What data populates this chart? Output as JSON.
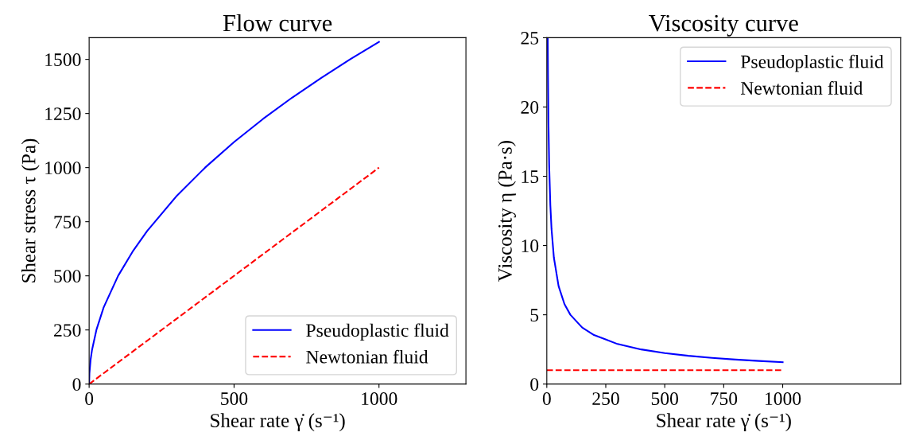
{
  "chart_data": [
    {
      "type": "line",
      "title": "Flow curve",
      "xlabel": "Shear rate γ̇ (s⁻¹)",
      "ylabel": "Shear stress τ (Pa)",
      "xlim": [
        0,
        1300
      ],
      "xticks": [
        0,
        500,
        1000
      ],
      "ylim": [
        0,
        1600
      ],
      "yticks": [
        0,
        250,
        500,
        750,
        1000,
        1250,
        1500
      ],
      "legend": "lower right",
      "grid": false,
      "series": [
        {
          "name": "Pseudoplastic fluid",
          "color": "#0000ff",
          "line_style": "solid",
          "x": [
            0,
            1,
            5,
            10,
            25,
            50,
            100,
            150,
            200,
            300,
            400,
            500,
            600,
            700,
            800,
            900,
            1000
          ],
          "values": [
            0,
            50,
            112,
            158,
            250,
            354,
            500,
            612,
            707,
            866,
            1000,
            1118,
            1225,
            1323,
            1414,
            1500,
            1581
          ]
        },
        {
          "name": "Newtonian fluid",
          "color": "#ff0000",
          "line_style": "dashed",
          "x": [
            0,
            1000
          ],
          "values": [
            0,
            1000
          ]
        }
      ]
    },
    {
      "type": "line",
      "title": "Viscosity curve",
      "xlabel": "Shear rate γ̇ (s⁻¹)",
      "ylabel": "Viscosity η (Pa·s)",
      "xlim": [
        0,
        1500
      ],
      "xticks": [
        0,
        250,
        500,
        750,
        1000
      ],
      "ylim": [
        0,
        25
      ],
      "yticks": [
        0,
        5,
        10,
        15,
        20,
        25
      ],
      "legend": "upper right",
      "grid": false,
      "series": [
        {
          "name": "Pseudoplastic fluid",
          "color": "#0000ff",
          "line_style": "solid",
          "x": [
            4,
            5,
            7,
            10,
            15,
            20,
            30,
            50,
            75,
            100,
            150,
            200,
            300,
            400,
            500,
            600,
            700,
            800,
            900,
            1000
          ],
          "values": [
            25,
            22.4,
            18.9,
            15.8,
            12.9,
            11.2,
            9.13,
            7.07,
            5.77,
            5,
            4.08,
            3.54,
            2.89,
            2.5,
            2.24,
            2.04,
            1.89,
            1.77,
            1.67,
            1.58
          ]
        },
        {
          "name": "Newtonian fluid",
          "color": "#ff0000",
          "line_style": "dashed",
          "x": [
            0,
            1000
          ],
          "values": [
            1,
            1
          ]
        }
      ]
    }
  ]
}
